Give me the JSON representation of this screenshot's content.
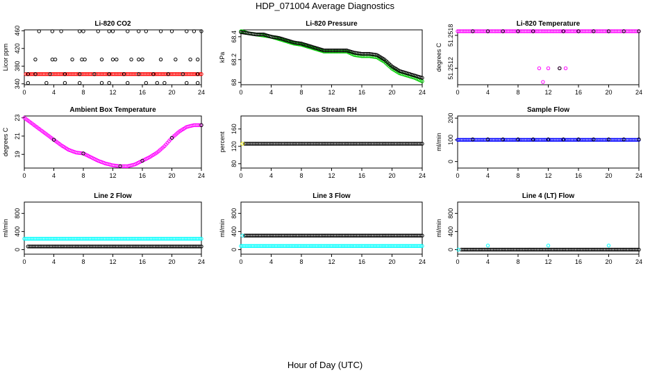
{
  "figure": {
    "title": "HDP_071004  Average Diagnostics",
    "xlabel": "Hour of Day (UTC)"
  },
  "chart_data": [
    {
      "id": "co2",
      "type": "scatter",
      "title": "Li-820 CO2",
      "ylabel": "Licor ppm",
      "xlim": [
        0,
        24
      ],
      "ylim": [
        338,
        462
      ],
      "xticks": [
        0,
        4,
        8,
        12,
        16,
        20,
        24
      ],
      "yticks": [
        340,
        380,
        420,
        460
      ],
      "series": [
        {
          "kind": "band",
          "color": "#ff0000",
          "x": [
            0.2,
            24
          ],
          "y": 362
        },
        {
          "kind": "points",
          "color": "#000000",
          "x": [
            0.5,
            1.5,
            3.5,
            5.5,
            7.5,
            9.5,
            11.5,
            13.5,
            15.5,
            17.5,
            19.5,
            21.5,
            23.5
          ],
          "y": 362
        },
        {
          "kind": "points",
          "color": "#000000",
          "x": [
            0.5,
            3,
            5.5,
            7.5,
            10.5,
            11.5,
            14,
            16.5,
            18,
            19,
            22,
            23.5
          ],
          "y": 342
        },
        {
          "kind": "points",
          "color": "#000000",
          "x": [
            1.5,
            3.8,
            4.2,
            6.5,
            7.8,
            8.2,
            10.5,
            12,
            12.5,
            14.5,
            15.5,
            16,
            18.5,
            20.5,
            22.5,
            23.5
          ],
          "y": 395
        },
        {
          "kind": "points",
          "color": "#000000",
          "x": [
            2,
            3.8,
            5,
            7.5,
            8,
            10,
            11.5,
            12,
            14,
            15.5,
            16.5,
            18.5,
            20,
            22,
            23,
            24
          ],
          "y": 460
        }
      ]
    },
    {
      "id": "pressure",
      "type": "scatter",
      "title": "Li-820 Pressure",
      "ylabel": "kPa",
      "xlim": [
        0,
        24
      ],
      "ylim": [
        67.98,
        68.46
      ],
      "xticks": [
        0,
        4,
        8,
        12,
        16,
        20,
        24
      ],
      "yticks": [
        68.0,
        68.2,
        68.4
      ],
      "series": [
        {
          "kind": "curve",
          "color": "#00cc00",
          "x": [
            0,
            1,
            2,
            3,
            4,
            5,
            6,
            7,
            8,
            9,
            10,
            11,
            12,
            13,
            14,
            15,
            16,
            17,
            18,
            19,
            20,
            21,
            22,
            23,
            24
          ],
          "y": [
            68.45,
            68.43,
            68.42,
            68.41,
            68.4,
            68.38,
            68.36,
            68.34,
            68.33,
            68.31,
            68.29,
            68.27,
            68.27,
            68.27,
            68.27,
            68.24,
            68.23,
            68.23,
            68.22,
            68.18,
            68.12,
            68.08,
            68.06,
            68.04,
            68.01
          ]
        },
        {
          "kind": "curve",
          "color": "#000000",
          "x": [
            0,
            1,
            2,
            3,
            4,
            5,
            6,
            7,
            8,
            9,
            10,
            11,
            12,
            13,
            14,
            15,
            16,
            17,
            18,
            19,
            20,
            21,
            22,
            23,
            24
          ],
          "y": [
            68.44,
            68.43,
            68.42,
            68.42,
            68.4,
            68.39,
            68.37,
            68.35,
            68.34,
            68.32,
            68.3,
            68.28,
            68.28,
            68.28,
            68.28,
            68.26,
            68.25,
            68.25,
            68.24,
            68.2,
            68.14,
            68.1,
            68.08,
            68.06,
            68.04
          ]
        }
      ]
    },
    {
      "id": "temperature",
      "type": "scatter",
      "title": "Li-820 Temperature",
      "ylabel": "degrees C",
      "xlim": [
        0,
        24
      ],
      "ylim": [
        51.2509,
        51.2519
      ],
      "xticks": [
        0,
        4,
        8,
        12,
        16,
        20,
        24
      ],
      "yticks": [
        51.2512,
        51.2518
      ],
      "series": [
        {
          "kind": "band",
          "color": "#ff00ff",
          "x": [
            0,
            24
          ],
          "y": 51.2519
        },
        {
          "kind": "points",
          "color": "#000000",
          "x": [
            2,
            4,
            6,
            8,
            10,
            14,
            16,
            18,
            20,
            22,
            24
          ],
          "y": 51.2519
        },
        {
          "kind": "points",
          "color": "#ff00ff",
          "x": [
            10.8,
            12,
            13.5,
            14.3
          ],
          "y": 51.2512
        },
        {
          "kind": "points",
          "color": "#ff00ff",
          "x": [
            11.3
          ],
          "y": 51.25095
        },
        {
          "kind": "points",
          "color": "#000000",
          "x": [
            13.5
          ],
          "y": 51.2512
        }
      ]
    },
    {
      "id": "ambient",
      "type": "scatter",
      "title": "Ambient Box Temperature",
      "ylabel": "degrees C",
      "xlim": [
        0,
        24
      ],
      "ylim": [
        17.5,
        23.2
      ],
      "xticks": [
        0,
        4,
        8,
        12,
        16,
        20,
        24
      ],
      "yticks": [
        19,
        21,
        23
      ],
      "series": [
        {
          "kind": "curve",
          "color": "#ff00ff",
          "x": [
            0,
            1,
            2,
            3,
            4,
            5,
            6,
            7,
            8,
            9,
            10,
            11,
            12,
            13,
            14,
            15,
            16,
            17,
            18,
            19,
            20,
            21,
            22,
            23,
            24
          ],
          "y": [
            23.0,
            22.4,
            21.8,
            21.2,
            20.6,
            20.0,
            19.5,
            19.2,
            19.1,
            18.7,
            18.3,
            18.0,
            17.8,
            17.7,
            17.7,
            17.9,
            18.3,
            18.7,
            19.2,
            19.9,
            20.8,
            21.5,
            22.0,
            22.2,
            22.2
          ]
        },
        {
          "kind": "points",
          "color": "#000000",
          "x": [
            4,
            8,
            13,
            16,
            20,
            24
          ],
          "y": [
            20.6,
            19.1,
            17.7,
            18.3,
            20.8,
            22.2
          ]
        }
      ]
    },
    {
      "id": "rh",
      "type": "scatter",
      "title": "Gas Stream RH",
      "ylabel": "percent",
      "xlim": [
        0,
        24
      ],
      "ylim": [
        70,
        190
      ],
      "xticks": [
        0,
        4,
        8,
        12,
        16,
        20,
        24
      ],
      "yticks": [
        80,
        120,
        160
      ],
      "series": [
        {
          "kind": "band",
          "color": "#000000",
          "x": [
            0.5,
            24
          ],
          "y": 126
        },
        {
          "kind": "points",
          "color": "#ffff00",
          "x": [
            0.2
          ],
          "y": 126
        }
      ]
    },
    {
      "id": "sampleflow",
      "type": "scatter",
      "title": "Sample Flow",
      "ylabel": "ml/min",
      "xlim": [
        0,
        24
      ],
      "ylim": [
        -30,
        210
      ],
      "xticks": [
        0,
        4,
        8,
        12,
        16,
        20,
        24
      ],
      "yticks": [
        0,
        100,
        200
      ],
      "series": [
        {
          "kind": "band",
          "color": "#0000ff",
          "x": [
            0,
            24
          ],
          "y": 100
        },
        {
          "kind": "points",
          "color": "#000000",
          "x": [
            2,
            4,
            6,
            8,
            10,
            12,
            14,
            16,
            18,
            20,
            22,
            24
          ],
          "y": 102
        }
      ]
    },
    {
      "id": "line2",
      "type": "scatter",
      "title": "Line 2 Flow",
      "ylabel": "ml/min",
      "xlim": [
        0,
        24
      ],
      "ylim": [
        -100,
        1050
      ],
      "xticks": [
        0,
        4,
        8,
        12,
        16,
        20,
        24
      ],
      "yticks": [
        0,
        400,
        800
      ],
      "series": [
        {
          "kind": "band",
          "color": "#00ffff",
          "x": [
            0,
            24
          ],
          "y": 240
        },
        {
          "kind": "band",
          "color": "#000000",
          "x": [
            0.5,
            24
          ],
          "y": 70
        }
      ]
    },
    {
      "id": "line3",
      "type": "scatter",
      "title": "Line 3 Flow",
      "ylabel": "ml/min",
      "xlim": [
        0,
        24
      ],
      "ylim": [
        -100,
        1050
      ],
      "xticks": [
        0,
        4,
        8,
        12,
        16,
        20,
        24
      ],
      "yticks": [
        0,
        400,
        800
      ],
      "series": [
        {
          "kind": "band",
          "color": "#000000",
          "x": [
            0.5,
            24
          ],
          "y": 310
        },
        {
          "kind": "band",
          "color": "#00ffff",
          "x": [
            0,
            24
          ],
          "y": 80
        },
        {
          "kind": "points",
          "color": "#00ffff",
          "x": [
            0.2
          ],
          "y": 310
        }
      ]
    },
    {
      "id": "line4",
      "type": "scatter",
      "title": "Line 4 (LT) Flow",
      "ylabel": "ml/min",
      "xlim": [
        0,
        24
      ],
      "ylim": [
        -100,
        1050
      ],
      "xticks": [
        0,
        4,
        8,
        12,
        16,
        20,
        24
      ],
      "yticks": [
        0,
        400,
        800
      ],
      "series": [
        {
          "kind": "band",
          "color": "#000000",
          "x": [
            0.5,
            24
          ],
          "y": 0
        },
        {
          "kind": "points",
          "color": "#00ffff",
          "x": [
            0.1,
            4,
            12,
            20
          ],
          "y": [
            0,
            90,
            90,
            90
          ]
        }
      ]
    }
  ]
}
